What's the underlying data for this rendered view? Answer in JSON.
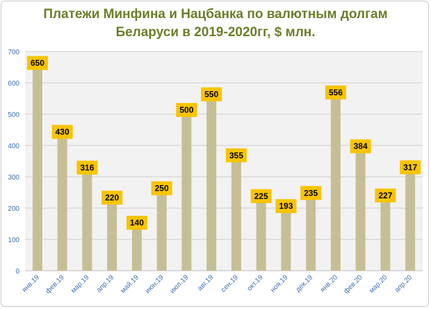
{
  "chart_data": {
    "type": "bar",
    "title_line1": "Платежи Минфина и Нацбанка по валютным долгам",
    "title_line2": "Беларуси в 2019-2020гг, $ млн.",
    "xlabel": "",
    "ylabel": "",
    "ylim": [
      0,
      700
    ],
    "yticks": [
      0,
      100,
      200,
      300,
      400,
      500,
      600,
      700
    ],
    "grid": true,
    "categories": [
      "янв.19",
      "фев.19",
      "мар.19",
      "апр.19",
      "май.19",
      "июн.19",
      "июл.19",
      "авг.19",
      "сен.19",
      "окт.19",
      "ноя.19",
      "дек.19",
      "янв.20",
      "фев.20",
      "мар.20",
      "апр.20"
    ],
    "values": [
      650,
      430,
      316,
      220,
      140,
      250,
      500,
      550,
      355,
      225,
      193,
      235,
      556,
      384,
      227,
      317
    ],
    "colors": {
      "bar": "#c6bf96",
      "plot_bg": "#f2f2f2",
      "grid": "#cfcfcf",
      "label_bg": "#f8c400",
      "axis_text": "#3f6fb5",
      "title": "#6b7e2a"
    }
  }
}
